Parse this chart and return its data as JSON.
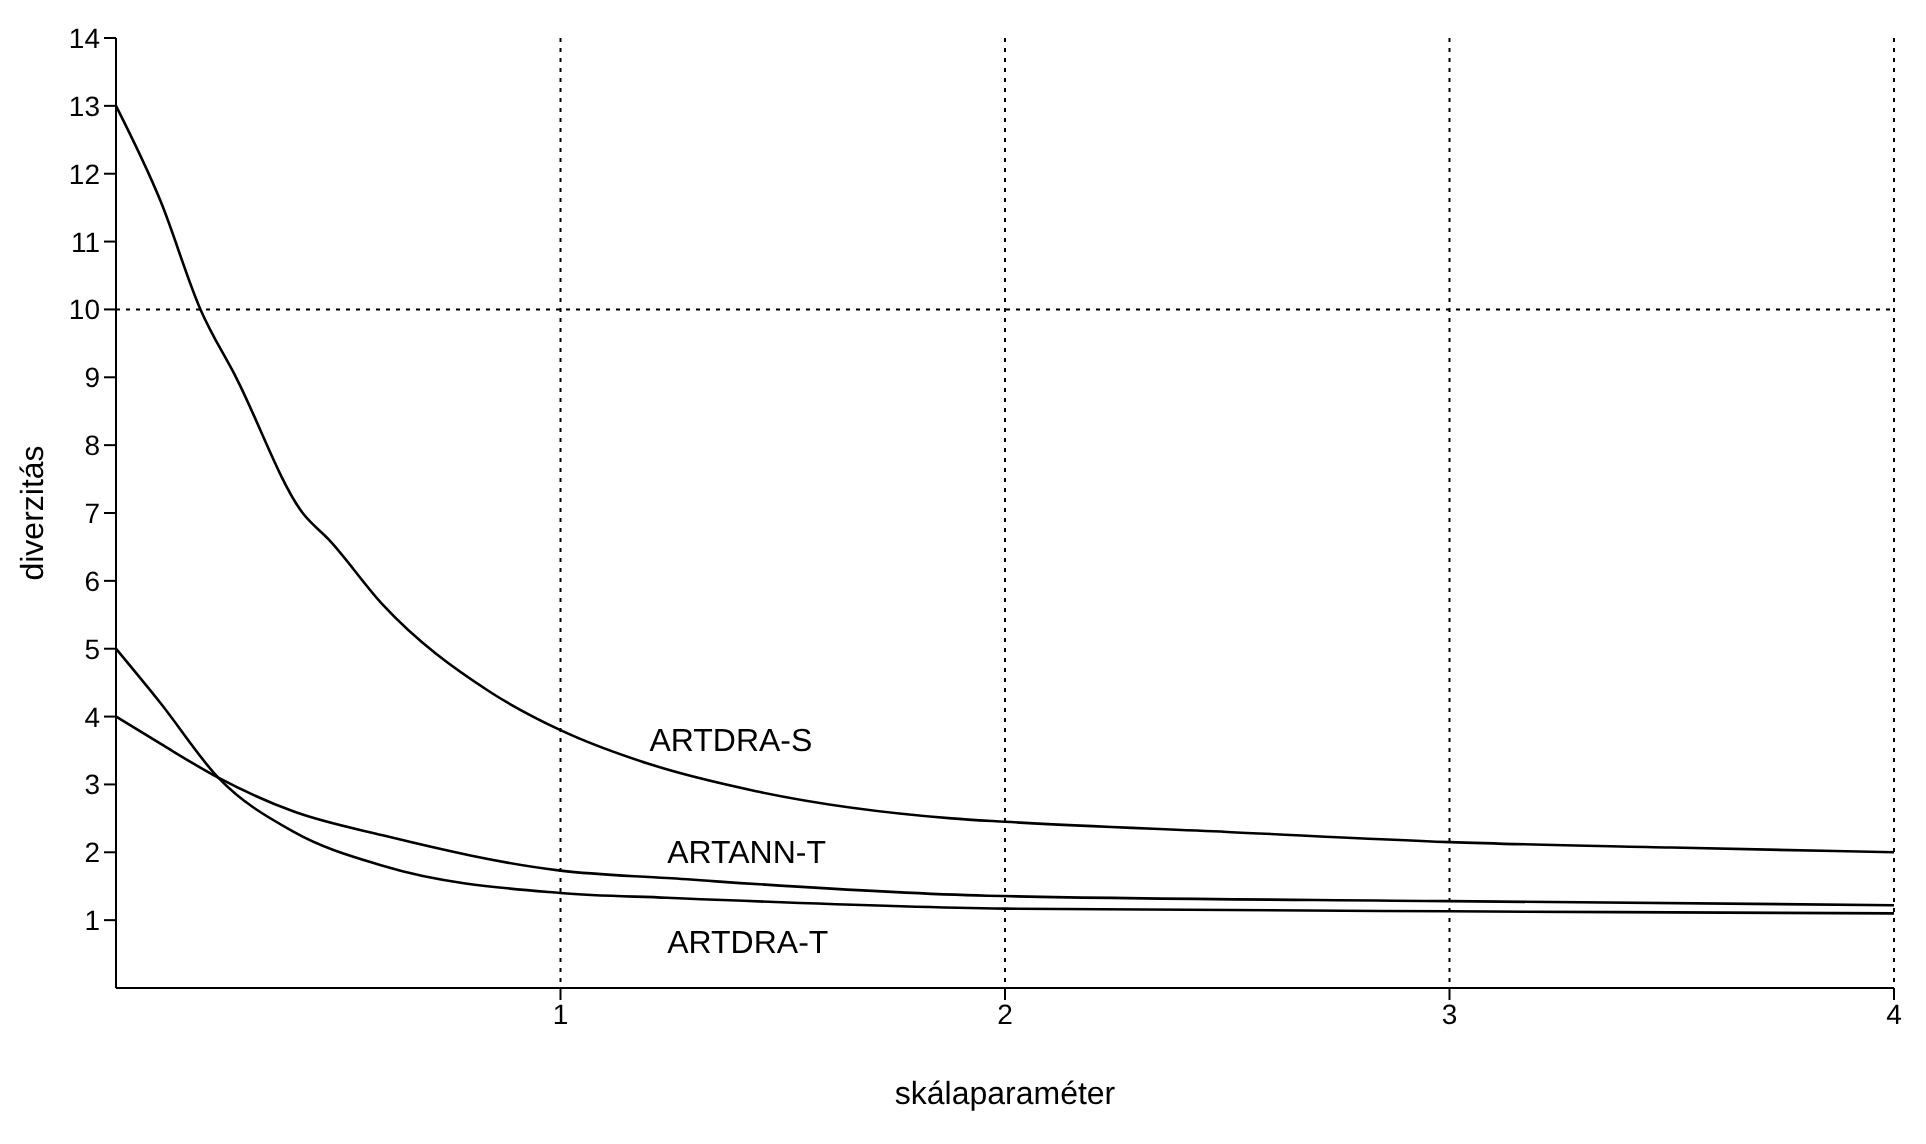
{
  "chart_data": {
    "type": "line",
    "xlabel": "skálaparaméter",
    "ylabel": "diverzitás",
    "xlim": [
      0,
      4
    ],
    "xticks": [
      1,
      2,
      3,
      4
    ],
    "ylim": [
      0,
      14
    ],
    "yticks": [
      1,
      2,
      3,
      4,
      5,
      6,
      7,
      8,
      9,
      10,
      11,
      12,
      13,
      14
    ],
    "grid": "x",
    "marker": "none",
    "line_style": "solid",
    "ref_lines": [
      {
        "axis": "y",
        "value": 10,
        "line_style": "dotted",
        "color": "#000000"
      }
    ],
    "series": [
      {
        "name": "ARTDRA-S",
        "color": "#000000",
        "x": [
          0,
          0.1,
          0.19,
          0.27,
          0.42,
          0.48,
          0.6,
          0.84,
          1,
          1.2,
          1.44,
          1.88,
          2,
          2.5,
          3,
          3.5,
          4
        ],
        "values": [
          13,
          11.6,
          10,
          9,
          7,
          6.6,
          5.65,
          4.37,
          3.8,
          3.3,
          2.9,
          2.5,
          2.45,
          2.3,
          2.15,
          2.07,
          2.0
        ]
      },
      {
        "name": "ARTANN-T",
        "color": "#000000",
        "x": [
          0,
          0.1,
          0.23,
          0.4,
          0.6,
          1,
          1.24,
          1.96,
          3,
          4
        ],
        "values": [
          4,
          3.6,
          3.1,
          2.6,
          2.25,
          1.73,
          1.62,
          1.36,
          1.28,
          1.22
        ]
      },
      {
        "name": "ARTDRA-T",
        "color": "#000000",
        "x": [
          0,
          0.1,
          0.23,
          0.4,
          0.6,
          1,
          1.24,
          2,
          3,
          4
        ],
        "values": [
          5,
          4.2,
          3.1,
          2.3,
          1.8,
          1.4,
          1.33,
          1.17,
          1.13,
          1.1
        ]
      }
    ]
  }
}
